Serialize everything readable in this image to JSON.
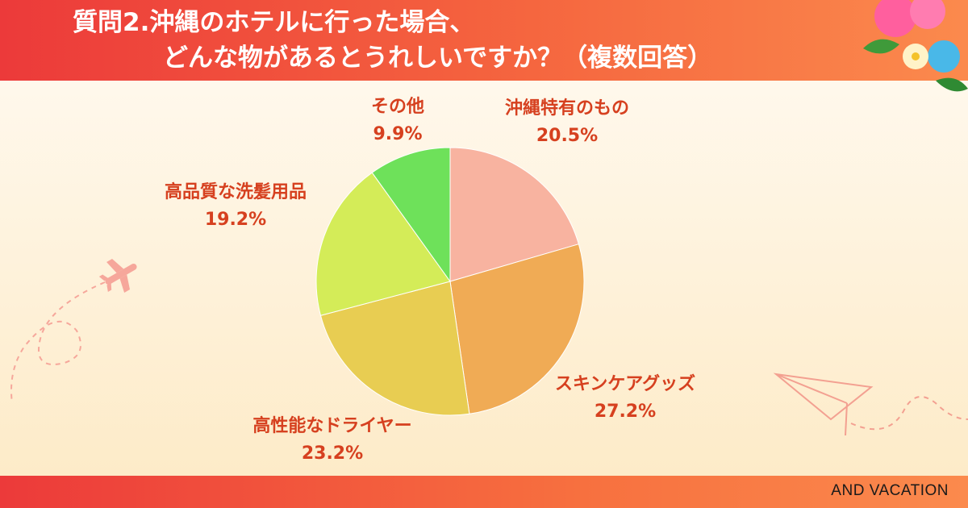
{
  "header": {
    "title_line1": "質問2.沖縄のホテルに行った場合、",
    "title_line2": "どんな物があるとうれしいですか？（複数回答）"
  },
  "footer": {
    "brand": "AND VACATION"
  },
  "colors": {
    "header_start": "#ec3a3a",
    "header_end": "#fb8a4d",
    "label_text": "#d6401f"
  },
  "chart_data": {
    "type": "pie",
    "start_angle_deg": 0,
    "direction": "clockwise",
    "slices": [
      {
        "label": "沖縄特有のもの",
        "value": 20.5,
        "value_label": "20.5%",
        "color": "#f8b3a0"
      },
      {
        "label": "スキンケアグッズ",
        "value": 27.2,
        "value_label": "27.2%",
        "color": "#f0ab55"
      },
      {
        "label": "高性能なドライヤー",
        "value": 23.2,
        "value_label": "23.2%",
        "color": "#e8cd52"
      },
      {
        "label": "高品質な洗髪用品",
        "value": 19.2,
        "value_label": "19.2%",
        "color": "#d4ec58"
      },
      {
        "label": "その他",
        "value": 9.9,
        "value_label": "9.9%",
        "color": "#6ee15a"
      }
    ]
  }
}
